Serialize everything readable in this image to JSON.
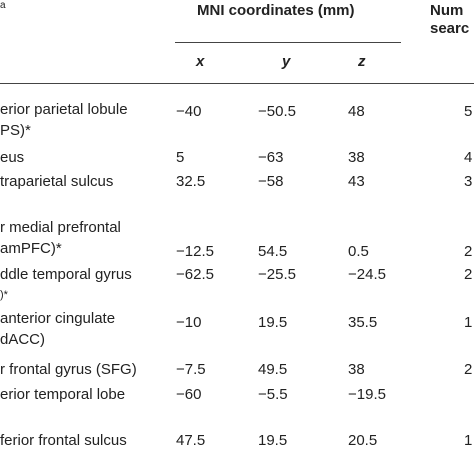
{
  "header": {
    "top_left_mark": "a",
    "mni_title": "MNI coordinates (mm)",
    "right_title_line1": "Num",
    "right_title_line2": "searc",
    "col_x": "x",
    "col_y": "y",
    "col_z": "z"
  },
  "rows": [
    {
      "name_lines": [
        "erior parietal lobule",
        "PS)*"
      ],
      "x": "−40",
      "y": "−50.5",
      "z": "48",
      "n": "5"
    },
    {
      "name_lines": [
        "eus"
      ],
      "x": "5",
      "y": "−63",
      "z": "38",
      "n": "4"
    },
    {
      "name_lines": [
        "traparietal sulcus"
      ],
      "x": "32.5",
      "y": "−58",
      "z": "43",
      "n": "3"
    },
    {
      "name_lines": [
        "r medial prefrontal",
        "amPFC)*"
      ],
      "x": "−12.5",
      "y": "54.5",
      "z": "0.5",
      "n": "2"
    },
    {
      "name_lines": [
        "ddle temporal gyrus",
        ")*"
      ],
      "x": "−62.5",
      "y": "−25.5",
      "z": "−24.5",
      "n": "2"
    },
    {
      "name_lines": [
        "anterior cingulate",
        "dACC)"
      ],
      "x": "−10",
      "y": "19.5",
      "z": "35.5",
      "n": "1"
    },
    {
      "name_lines": [
        "r frontal gyrus (SFG)"
      ],
      "x": "−7.5",
      "y": "49.5",
      "z": "38",
      "n": "2"
    },
    {
      "name_lines": [
        "erior temporal lobe"
      ],
      "x": "−60",
      "y": "−5.5",
      "z": "−19.5",
      "n": ""
    },
    {
      "name_lines": [
        "ferior frontal sulcus"
      ],
      "x": "47.5",
      "y": "19.5",
      "z": "20.5",
      "n": "1"
    }
  ]
}
